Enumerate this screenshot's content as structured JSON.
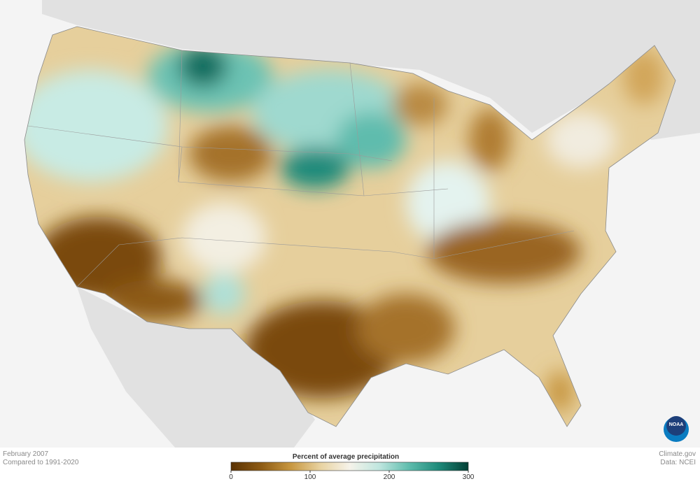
{
  "map": {
    "date": "February 2007",
    "baseline": "Compared to 1991-2020"
  },
  "legend": {
    "title": "Percent of average precipitation",
    "range": [
      0,
      300
    ],
    "ticks": [
      0,
      100,
      200,
      300
    ],
    "colors": [
      "#5a3204",
      "#8c5a14",
      "#c7963f",
      "#e8d2a0",
      "#f6f3ea",
      "#bfe6df",
      "#5fbcad",
      "#1e8a7a",
      "#033f35"
    ]
  },
  "credits": {
    "source": "Climate.gov",
    "data": "Data: NCEI",
    "logo": "NOAA"
  }
}
